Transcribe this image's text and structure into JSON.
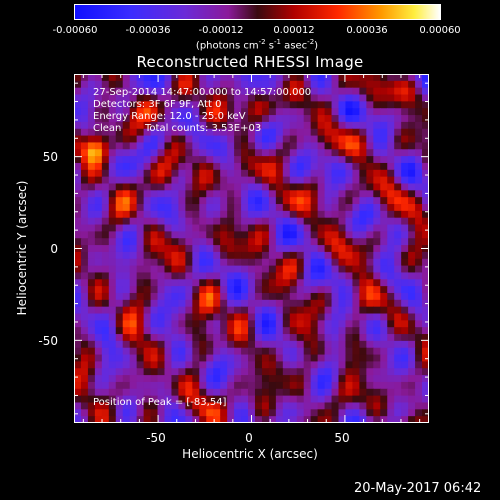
{
  "chart_data": {
    "type": "heatmap",
    "title": "Reconstructed RHESSI Image",
    "xlabel": "Heliocentric X (arcsec)",
    "ylabel": "Heliocentric Y (arcsec)",
    "xlim": [
      -95,
      95
    ],
    "ylim": [
      -95,
      95
    ],
    "x_ticks": [
      "-50",
      "0",
      "50"
    ],
    "x_tick_values": [
      -50,
      0,
      50
    ],
    "y_ticks": [
      "50",
      "0",
      "-50"
    ],
    "y_tick_values": [
      50,
      0,
      -50
    ],
    "colorbar": {
      "ticks": [
        "-0.00060",
        "-0.00036",
        "-0.00012",
        "0.00012",
        "0.00036",
        "0.00060"
      ],
      "tick_values": [
        -0.0006,
        -0.00036,
        -0.00012,
        0.00012,
        0.00036,
        0.0006
      ],
      "range": [
        -0.0006,
        0.0006
      ],
      "unit_base": "(photons cm",
      "unit_exp1": "-2",
      "unit_mid1": " s",
      "unit_exp2": "-1",
      "unit_mid2": " asec",
      "unit_exp3": "-2",
      "unit_end": ")"
    },
    "annotations": {
      "time_range": "27-Sep-2014 14:47:00.000 to 14:57:00.000",
      "detectors": "Detectors: 3F 6F 9F, Att 0",
      "energy": "Energy Range: 12.0 - 25.0 keV",
      "clean_label": "Clean",
      "counts": "Total counts: 3.53E+03",
      "peak": "Position of Peak = [-83,54]"
    },
    "peak_position": [
      -83,
      54
    ],
    "image_grid": {
      "nx": 51,
      "ny": 51
    }
  },
  "footer": {
    "date": "20-May-2017 06:42"
  }
}
